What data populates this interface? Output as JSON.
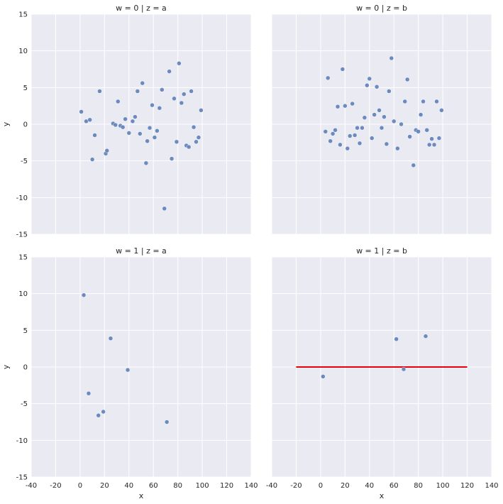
{
  "chart_data": {
    "type": "scatter",
    "xlabel": "x",
    "ylabel": "y",
    "xlim": [
      -40,
      140
    ],
    "ylim": [
      -15,
      15
    ],
    "xticks": [
      -40,
      -20,
      0,
      20,
      40,
      60,
      80,
      100,
      120,
      140
    ],
    "yticks": [
      -15,
      -10,
      -5,
      0,
      5,
      10,
      15
    ],
    "grid": true,
    "point_color": "#4c72b0",
    "line_color": "#e8000b",
    "facets": [
      {
        "title": "w = 0 | z = a",
        "points": [
          [
            1,
            1.7
          ],
          [
            5,
            0.4
          ],
          [
            8,
            0.6
          ],
          [
            10,
            -4.8
          ],
          [
            12,
            -1.5
          ],
          [
            16,
            4.5
          ],
          [
            21,
            -4.0
          ],
          [
            22,
            -3.6
          ],
          [
            27,
            0.1
          ],
          [
            29,
            -0.1
          ],
          [
            31,
            3.1
          ],
          [
            33,
            -0.2
          ],
          [
            35,
            -0.4
          ],
          [
            37,
            0.7
          ],
          [
            40,
            -1.2
          ],
          [
            43,
            0.4
          ],
          [
            45,
            1.0
          ],
          [
            47,
            4.5
          ],
          [
            49,
            -1.3
          ],
          [
            51,
            5.6
          ],
          [
            54,
            -5.3
          ],
          [
            55,
            -2.3
          ],
          [
            57,
            -0.5
          ],
          [
            59,
            2.6
          ],
          [
            61,
            -1.8
          ],
          [
            63,
            -0.9
          ],
          [
            65,
            2.2
          ],
          [
            67,
            4.7
          ],
          [
            69,
            -11.5
          ],
          [
            73,
            7.2
          ],
          [
            75,
            -4.7
          ],
          [
            77,
            3.5
          ],
          [
            79,
            -2.4
          ],
          [
            81,
            8.3
          ],
          [
            83,
            2.9
          ],
          [
            85,
            4.1
          ],
          [
            87,
            -2.9
          ],
          [
            89,
            -3.1
          ],
          [
            91,
            4.5
          ],
          [
            93,
            -0.4
          ],
          [
            95,
            -2.4
          ],
          [
            97,
            -1.8
          ],
          [
            99,
            1.9
          ]
        ]
      },
      {
        "title": "w = 0 | z = b",
        "points": [
          [
            4,
            -1.0
          ],
          [
            6,
            6.3
          ],
          [
            8,
            -2.3
          ],
          [
            10,
            -1.3
          ],
          [
            12,
            -0.8
          ],
          [
            14,
            2.4
          ],
          [
            16,
            -2.8
          ],
          [
            18,
            7.5
          ],
          [
            20,
            2.5
          ],
          [
            22,
            -3.3
          ],
          [
            24,
            -1.6
          ],
          [
            26,
            2.8
          ],
          [
            28,
            -1.5
          ],
          [
            30,
            -0.5
          ],
          [
            32,
            -2.6
          ],
          [
            34,
            -0.5
          ],
          [
            36,
            0.9
          ],
          [
            38,
            5.3
          ],
          [
            40,
            6.2
          ],
          [
            42,
            -1.9
          ],
          [
            44,
            1.3
          ],
          [
            46,
            5.1
          ],
          [
            48,
            1.9
          ],
          [
            50,
            -0.5
          ],
          [
            52,
            1.0
          ],
          [
            54,
            -2.7
          ],
          [
            56,
            4.5
          ],
          [
            58,
            9.0
          ],
          [
            60,
            0.4
          ],
          [
            63,
            -3.3
          ],
          [
            66,
            0.0
          ],
          [
            69,
            3.1
          ],
          [
            71,
            6.1
          ],
          [
            73,
            -1.7
          ],
          [
            76,
            -5.6
          ],
          [
            78,
            -0.8
          ],
          [
            80,
            -1.0
          ],
          [
            82,
            1.3
          ],
          [
            84,
            3.1
          ],
          [
            87,
            -0.8
          ],
          [
            89,
            -2.8
          ],
          [
            91,
            -2.0
          ],
          [
            93,
            -2.8
          ],
          [
            95,
            3.1
          ],
          [
            97,
            -1.9
          ],
          [
            99,
            1.9
          ]
        ]
      },
      {
        "title": "w = 1 | z = a",
        "points": [
          [
            3,
            9.8
          ],
          [
            7,
            -3.6
          ],
          [
            15,
            -6.6
          ],
          [
            19,
            -6.1
          ],
          [
            25,
            3.9
          ],
          [
            39,
            -0.4
          ],
          [
            71,
            -7.5
          ]
        ]
      },
      {
        "title": "w = 1 | z = b",
        "points": [
          [
            2,
            -1.3
          ],
          [
            62,
            3.8
          ],
          [
            68,
            -0.3
          ],
          [
            86,
            4.2
          ]
        ],
        "line": {
          "x": [
            -20,
            120
          ],
          "y": [
            0,
            0
          ]
        }
      }
    ]
  }
}
